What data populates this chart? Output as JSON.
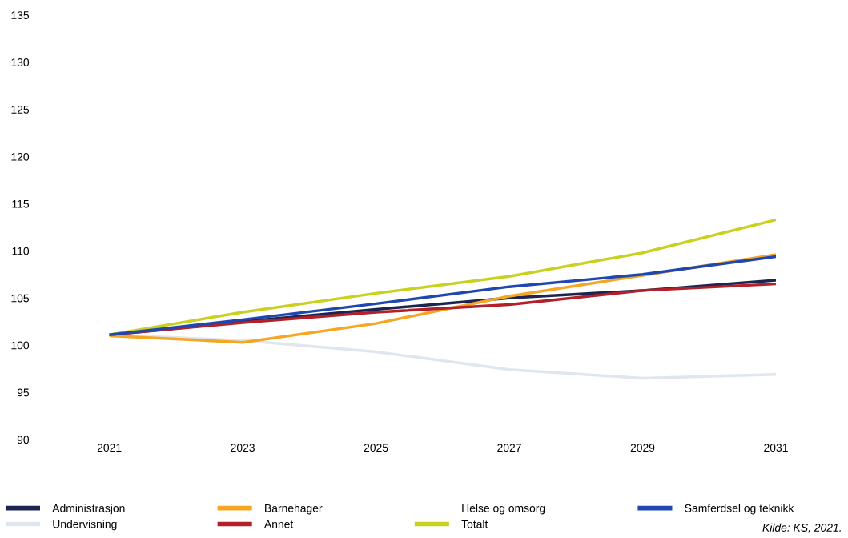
{
  "chart_data": {
    "type": "line",
    "x": [
      2021,
      2023,
      2025,
      2027,
      2029,
      2031
    ],
    "xlim": [
      2021,
      2031
    ],
    "xticks": [
      2021,
      2023,
      2025,
      2027,
      2029,
      2031
    ],
    "ylim": [
      90,
      135
    ],
    "yticks": [
      90,
      95,
      100,
      105,
      110,
      115,
      120,
      125,
      130,
      135
    ],
    "grid": false,
    "legend": "bottom",
    "marker": "none",
    "line_style": "solid",
    "annotations": [
      "Helse og omsorg",
      "Kilde: KS, 2021."
    ],
    "series": [
      {
        "name": "Administrasjon",
        "color": "#1b2550",
        "values": [
          101.1,
          102.5,
          103.8,
          105.0,
          105.8,
          106.9
        ]
      },
      {
        "name": "Undervisning",
        "color": "#dfe6ee",
        "values": [
          101.1,
          100.5,
          99.3,
          97.4,
          96.5,
          96.9
        ]
      },
      {
        "name": "Barnehager",
        "color": "#f5a623",
        "values": [
          101.0,
          100.3,
          102.3,
          105.2,
          107.4,
          109.6
        ]
      },
      {
        "name": "Annet",
        "color": "#b3202a",
        "values": [
          101.1,
          102.4,
          103.5,
          104.3,
          105.8,
          106.5
        ]
      },
      {
        "name": "Totalt",
        "color": "#c8d21e",
        "values": [
          101.1,
          103.5,
          105.5,
          107.3,
          109.8,
          113.3
        ]
      },
      {
        "name": "Samferdsel og teknikk",
        "color": "#1f47b0",
        "values": [
          101.1,
          102.7,
          104.4,
          106.2,
          107.5,
          109.4
        ]
      }
    ]
  }
}
